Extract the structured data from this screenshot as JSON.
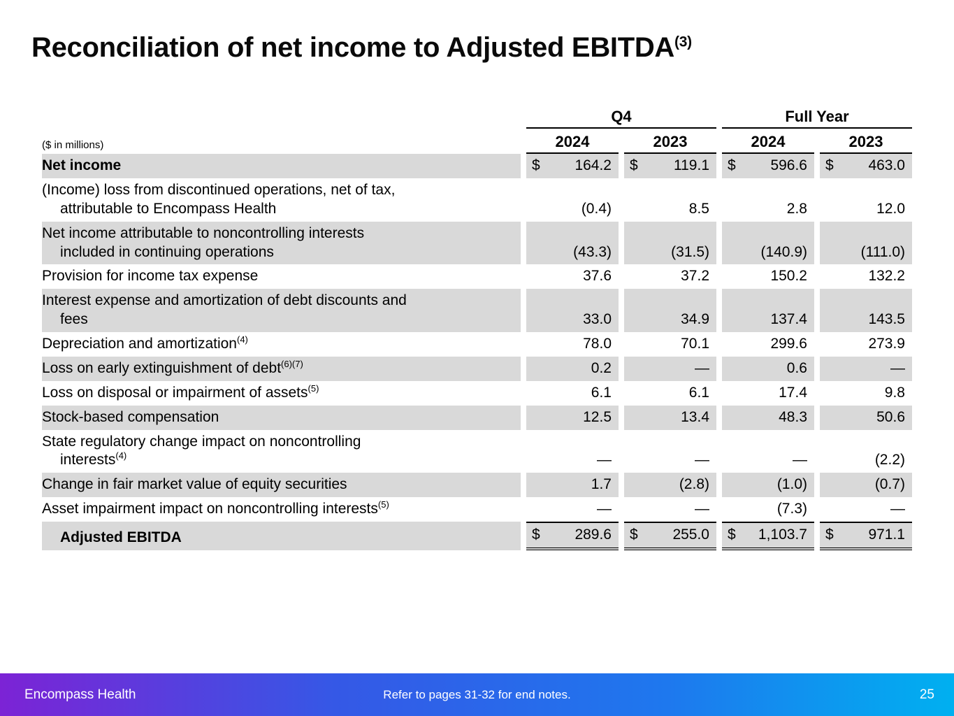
{
  "slide": {
    "title": "Reconciliation of net income to Adjusted EBITDA",
    "title_sup": "(3)"
  },
  "table": {
    "units_label": "($ in millions)",
    "groups": [
      {
        "label": "Q4"
      },
      {
        "label": "Full Year"
      }
    ],
    "years": [
      "2024",
      "2023",
      "2024",
      "2023"
    ],
    "rows": [
      {
        "label": "Net income",
        "sup": "",
        "bold": true,
        "shaded": true,
        "dollar": true,
        "values": [
          "164.2",
          "119.1",
          "596.6",
          "463.0"
        ]
      },
      {
        "label": "(Income) loss from discontinued operations, net of tax,\nattributable to Encompass Health",
        "sup": "",
        "bold": false,
        "shaded": false,
        "dollar": false,
        "values": [
          "(0.4)",
          "8.5",
          "2.8",
          "12.0"
        ]
      },
      {
        "label": "Net income attributable to noncontrolling interests\nincluded in continuing operations",
        "sup": "",
        "bold": false,
        "shaded": true,
        "dollar": false,
        "values": [
          "(43.3)",
          "(31.5)",
          "(140.9)",
          "(111.0)"
        ]
      },
      {
        "label": "Provision for income tax expense",
        "sup": "",
        "bold": false,
        "shaded": false,
        "dollar": false,
        "values": [
          "37.6",
          "37.2",
          "150.2",
          "132.2"
        ]
      },
      {
        "label": "Interest expense and amortization of debt discounts and\nfees",
        "sup": "",
        "bold": false,
        "shaded": true,
        "dollar": false,
        "values": [
          "33.0",
          "34.9",
          "137.4",
          "143.5"
        ]
      },
      {
        "label": "Depreciation and amortization",
        "sup": "(4)",
        "bold": false,
        "shaded": false,
        "dollar": false,
        "values": [
          "78.0",
          "70.1",
          "299.6",
          "273.9"
        ]
      },
      {
        "label": "Loss on early extinguishment of debt",
        "sup": "(6)(7)",
        "bold": false,
        "shaded": true,
        "dollar": false,
        "values": [
          "0.2",
          "—",
          "0.6",
          "—"
        ]
      },
      {
        "label": "Loss on disposal or impairment of assets",
        "sup": "(5)",
        "bold": false,
        "shaded": false,
        "dollar": false,
        "values": [
          "6.1",
          "6.1",
          "17.4",
          "9.8"
        ]
      },
      {
        "label": "Stock-based compensation",
        "sup": "",
        "bold": false,
        "shaded": true,
        "dollar": false,
        "values": [
          "12.5",
          "13.4",
          "48.3",
          "50.6"
        ]
      },
      {
        "label": "State regulatory change impact on noncontrolling\ninterests",
        "sup": "(4)",
        "bold": false,
        "shaded": false,
        "dollar": false,
        "values": [
          "—",
          "—",
          "—",
          "(2.2)"
        ]
      },
      {
        "label": "Change in fair market value of equity securities",
        "sup": "",
        "bold": false,
        "shaded": true,
        "dollar": false,
        "values": [
          "1.7",
          "(2.8)",
          "(1.0)",
          "(0.7)"
        ]
      },
      {
        "label": "Asset impairment impact on noncontrolling interests",
        "sup": "(5)",
        "bold": false,
        "shaded": false,
        "dollar": false,
        "values": [
          "—",
          "—",
          "(7.3)",
          "—"
        ]
      }
    ],
    "total_row": {
      "label": "Adjusted EBITDA",
      "sup": "",
      "bold": true,
      "shaded": true,
      "dollar": true,
      "values": [
        "289.6",
        "255.0",
        "1,103.7",
        "971.1"
      ]
    }
  },
  "footer": {
    "brand": "Encompass Health",
    "note": "Refer to pages 31-32 for end notes.",
    "page": "25"
  },
  "colors": {
    "row_shade": "#d9d9d9",
    "footer_gradient_start": "#7c23d5",
    "footer_gradient_mid": "#1e78ee",
    "footer_gradient_end": "#00b0f0",
    "text": "#000000"
  }
}
